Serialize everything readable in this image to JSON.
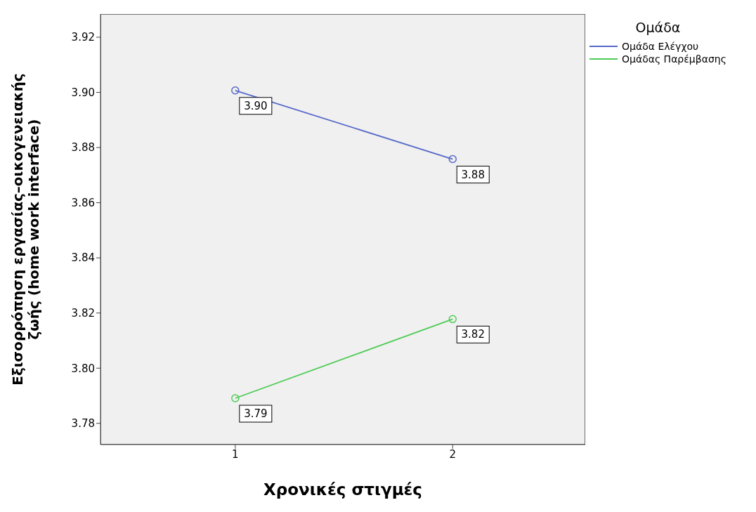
{
  "chart_data": {
    "type": "line",
    "xlabel": "Χρονικές στιγμές",
    "ylabel": "Εξισορρόπηση εργασίας–οικογενειακής ζωής (home work interface)",
    "legend_title": "Ομάδα",
    "x": [
      1,
      2
    ],
    "xlim": [
      0.38,
      2.61
    ],
    "xticks": [
      1,
      2
    ],
    "ylim": [
      3.7723,
      3.9284
    ],
    "yticks": [
      {
        "value": 3.78,
        "label": "3.78"
      },
      {
        "value": 3.8,
        "label": "3.80"
      },
      {
        "value": 3.82,
        "label": "3.82"
      },
      {
        "value": 3.84,
        "label": "3.84"
      },
      {
        "value": 3.86,
        "label": "3.86"
      },
      {
        "value": 3.88,
        "label": "3.88"
      },
      {
        "value": 3.9,
        "label": "3.90"
      },
      {
        "value": 3.92,
        "label": "3.92"
      }
    ],
    "series": [
      {
        "name": "Ομάδα Ελέγχου",
        "color": "#5668c8",
        "values": [
          3.9007,
          3.8758
        ],
        "value_labels": [
          "3.90",
          "3.88"
        ]
      },
      {
        "name": "Ομάδας Παρέμβασης",
        "color": "#4fcb55",
        "values": [
          3.7891,
          3.8178
        ],
        "value_labels": [
          "3.79",
          "3.82"
        ]
      }
    ],
    "marker": "circle",
    "line_style": "solid",
    "grid": false,
    "legend": "top right"
  }
}
